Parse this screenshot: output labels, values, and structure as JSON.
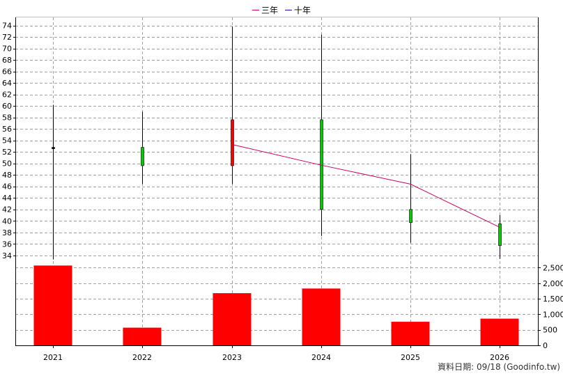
{
  "chart_data": {
    "type": "candlestick+bar",
    "legend": [
      {
        "label": "三年",
        "color": "#cc0066"
      },
      {
        "label": "十年",
        "color": "#3300aa"
      }
    ],
    "categories": [
      "2021",
      "2022",
      "2023",
      "2024",
      "2025",
      "2026"
    ],
    "price": {
      "ylim": [
        32.4,
        75.4
      ],
      "ticks": [
        34,
        36,
        38,
        40,
        42,
        44,
        46,
        48,
        50,
        52,
        54,
        56,
        58,
        60,
        62,
        64,
        66,
        68,
        70,
        72,
        74
      ],
      "candles": [
        {
          "open": 52.8,
          "close": 52.8,
          "high": 60.2,
          "low": 33.3
        },
        {
          "open": 49.6,
          "close": 52.8,
          "high": 59.0,
          "low": 46.4
        },
        {
          "open": 57.6,
          "close": 49.6,
          "high": 73.8,
          "low": 46.4
        },
        {
          "open": 42.0,
          "close": 57.6,
          "high": 72.4,
          "low": 37.4
        },
        {
          "open": 39.7,
          "close": 42.0,
          "high": 51.6,
          "low": 36.2
        },
        {
          "open": 35.7,
          "close": 39.5,
          "high": 41.0,
          "low": 33.4
        }
      ],
      "up_color": "#00cc00",
      "down_color": "#ff0000",
      "ma_series": [
        {
          "name": "三年",
          "color": "#cc0066",
          "values": [
            null,
            null,
            53.3,
            49.7,
            46.4,
            38.9
          ]
        }
      ]
    },
    "volume": {
      "ylim": [
        0,
        2600
      ],
      "ticks": [
        0,
        500,
        1000,
        1500,
        2000,
        2500
      ],
      "tick_labels": [
        "0",
        "500",
        "1,000",
        "1,500",
        "2,000",
        "2,500"
      ],
      "values": [
        2570,
        570,
        1680,
        1830,
        760,
        860
      ],
      "color": "#ff0000"
    },
    "grid": true
  },
  "footer": {
    "text": "資料日期: 09/18  (Goodinfo.tw)"
  }
}
